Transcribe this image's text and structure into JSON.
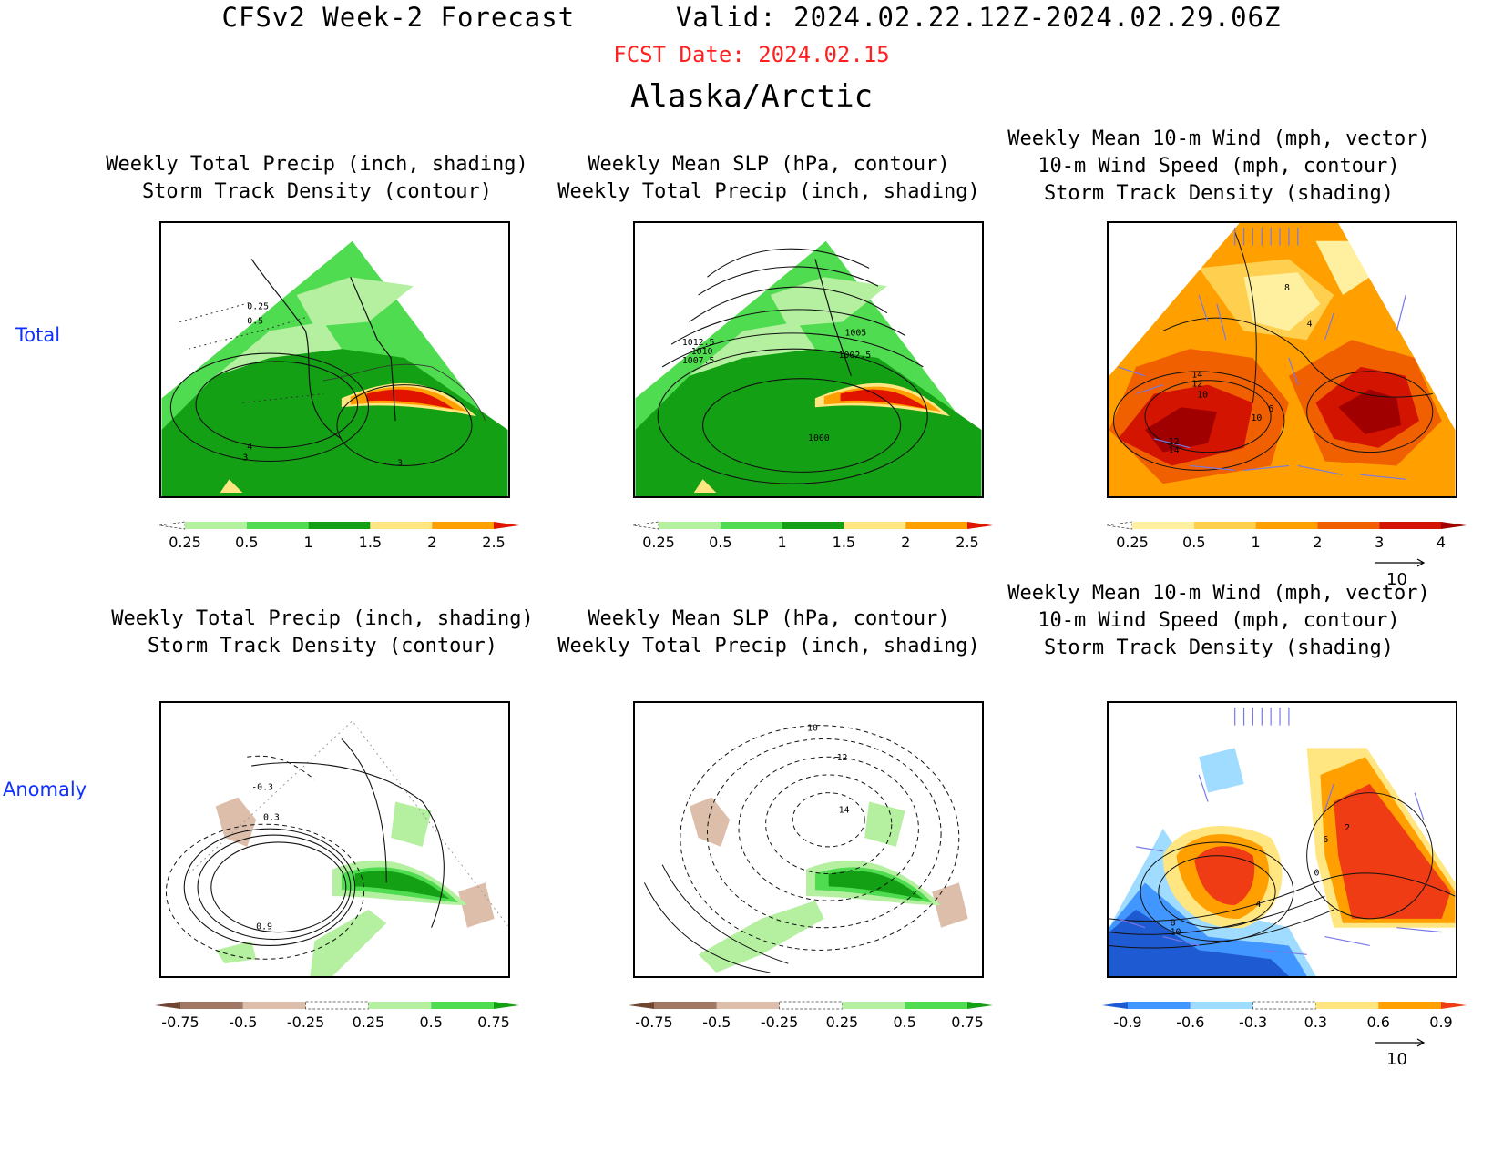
{
  "header": {
    "title_left": "CFSv2 Week-2 Forecast",
    "title_right": "Valid: 2024.02.22.12Z-2024.02.29.06Z",
    "fcst_date": "FCST Date: 2024.02.15",
    "region": "Alaska/Arctic"
  },
  "rows": {
    "total_label": "Total",
    "anomaly_label": "Anomaly"
  },
  "panels": {
    "precip_total_title": [
      "Weekly Total Precip (inch, shading)",
      "Storm Track Density (contour)"
    ],
    "slp_total_title": [
      "Weekly Mean SLP (hPa, contour)",
      "Weekly Total Precip (inch, shading)"
    ],
    "wind_total_title": [
      "Weekly Mean 10-m Wind (mph, vector)",
      "10-m Wind Speed (mph, contour)",
      "Storm Track Density (shading)"
    ],
    "precip_anom_title": [
      "Weekly Total Precip (inch, shading)",
      "Storm Track Density (contour)"
    ],
    "slp_anom_title": [
      "Weekly Mean SLP (hPa, contour)",
      "Weekly Total Precip (inch, shading)"
    ],
    "wind_anom_title": [
      "Weekly Mean 10-m Wind (mph, vector)",
      "10-m Wind Speed (mph, contour)",
      "Storm Track Density (shading)"
    ]
  },
  "contour_labels": {
    "precip_total": [
      "0.25",
      "0.5",
      "4",
      "3",
      "3"
    ],
    "slp_total": [
      "1012.5",
      "1010",
      "1007.5",
      "1005",
      "1002.5",
      "1000"
    ],
    "wind_total": [
      "8",
      "4",
      "14",
      "12",
      "10",
      "10",
      "6",
      "12",
      "14"
    ],
    "precip_anom": [
      "-0.3",
      "0.3",
      "0.9"
    ],
    "slp_anom": [
      "-10",
      "-12",
      "-14"
    ],
    "wind_anom": [
      "6",
      "2",
      "4",
      "8",
      "10",
      "0"
    ]
  },
  "colorbars": {
    "precip_total": {
      "ticks": [
        "0.25",
        "0.5",
        "1",
        "1.5",
        "2",
        "2.5"
      ],
      "colors": [
        "#ffffff",
        "#b4f0a0",
        "#50dc50",
        "#14a014",
        "#ffe680",
        "#ffa000",
        "#e11400"
      ]
    },
    "storm_total": {
      "ticks": [
        "0.25",
        "0.5",
        "1",
        "2",
        "3",
        "4"
      ],
      "colors": [
        "#ffffff",
        "#fff0a0",
        "#ffd050",
        "#ffa000",
        "#f06000",
        "#d21400",
        "#a00000"
      ]
    },
    "precip_anom": {
      "ticks": [
        "-0.75",
        "-0.5",
        "-0.25",
        "0.25",
        "0.5",
        "0.75"
      ],
      "colors": [
        "#6e4632",
        "#a07864",
        "#dcbeaa",
        "#ffffff",
        "#b4f0a0",
        "#50dc50",
        "#14a014"
      ]
    },
    "storm_anom": {
      "ticks": [
        "-0.9",
        "-0.6",
        "-0.3",
        "0.3",
        "0.6",
        "0.9"
      ],
      "colors": [
        "#1e5ad2",
        "#4196ff",
        "#a0dcff",
        "#ffffff",
        "#ffe680",
        "#ffa000",
        "#f03c14"
      ]
    }
  },
  "vector_key": {
    "label": "10"
  },
  "colors": {
    "fcst_date": "#ff2020",
    "row_labels": "#1030ff",
    "wind_vectors": "#7878e6"
  }
}
